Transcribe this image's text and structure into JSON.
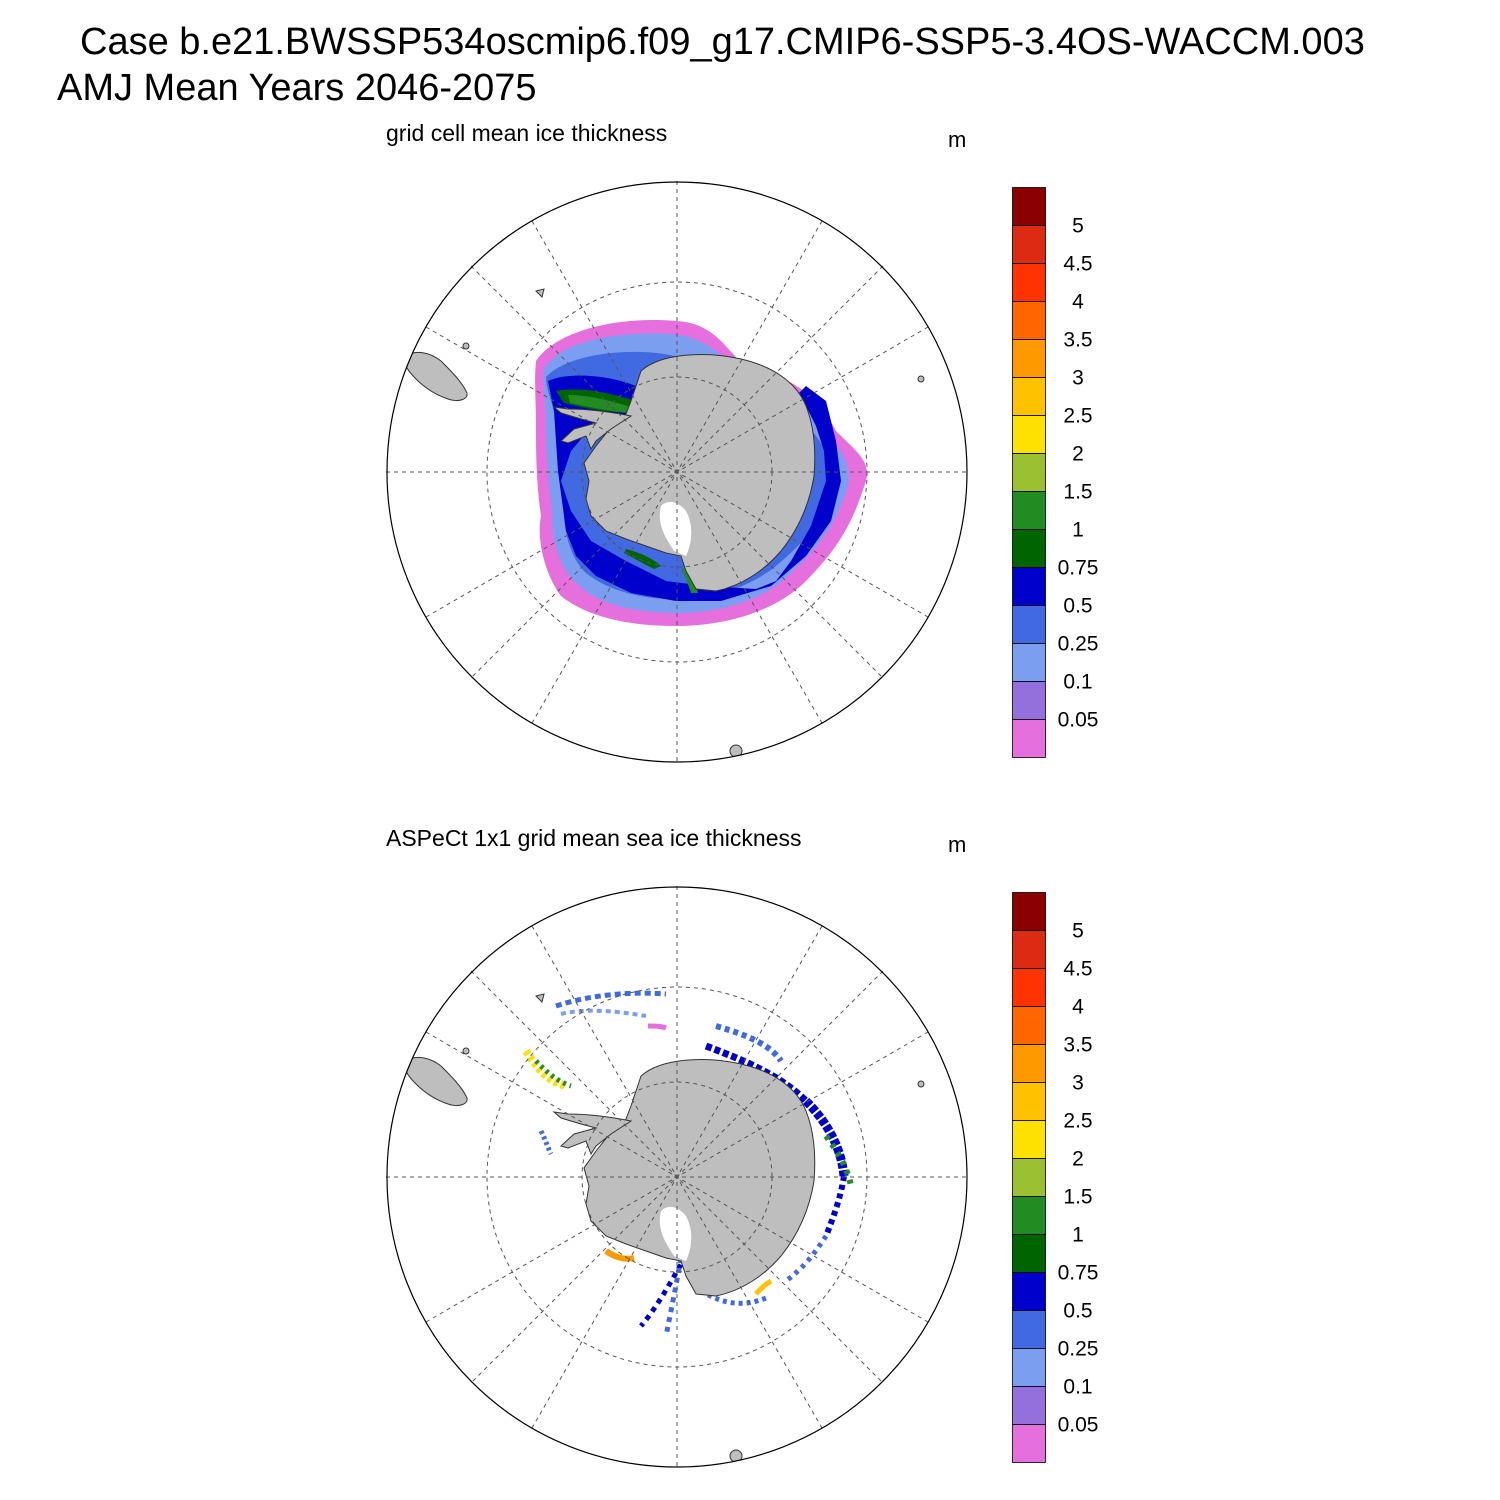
{
  "header": {
    "line1": "Case b.e21.BWSSP534oscmip6.f09_g17.CMIP6-SSP5-3.4OS-WACCM.003",
    "line2": "AMJ Mean   Years 2046-2075"
  },
  "panels": [
    {
      "title": "grid cell mean ice thickness",
      "units": "m"
    },
    {
      "title": "ASPeCt 1x1 grid mean sea ice thickness",
      "units": "m"
    }
  ],
  "colorbar": {
    "levels": [
      "5",
      "4.5",
      "4",
      "3.5",
      "3",
      "2.5",
      "2",
      "1.5",
      "1",
      "0.75",
      "0.5",
      "0.25",
      "0.1",
      "0.05"
    ],
    "colors": [
      "#8b0000",
      "#dc2b12",
      "#ff3300",
      "#ff6600",
      "#ff9900",
      "#ffc100",
      "#ffe100",
      "#9bc133",
      "#228b22",
      "#006400",
      "#0000cd",
      "#4169e1",
      "#7b9ef0",
      "#9370db",
      "#e66fde"
    ]
  },
  "colors": {
    "land": "#bebebe",
    "coast": "#333333",
    "grid": "#555555"
  }
}
